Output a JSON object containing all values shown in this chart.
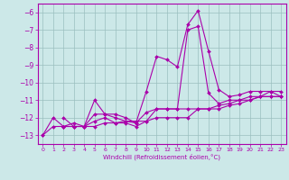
{
  "title": "",
  "xlabel": "Windchill (Refroidissement éolien,°C)",
  "ylabel": "",
  "background_color": "#cce8e8",
  "grid_color": "#9bbfbf",
  "line_color": "#aa00aa",
  "xlim": [
    -0.5,
    23.5
  ],
  "ylim": [
    -13.5,
    -5.5
  ],
  "yticks": [
    -13,
    -12,
    -11,
    -10,
    -9,
    -8,
    -7,
    -6
  ],
  "xticks": [
    0,
    1,
    2,
    3,
    4,
    5,
    6,
    7,
    8,
    9,
    10,
    11,
    12,
    13,
    14,
    15,
    16,
    17,
    18,
    19,
    20,
    21,
    22,
    23
  ],
  "series": [
    [
      null,
      null,
      -12.0,
      -12.5,
      -12.5,
      -11.0,
      -11.8,
      -12.0,
      -12.2,
      -12.3,
      -10.5,
      -8.5,
      -8.7,
      -9.1,
      -6.7,
      -5.9,
      -8.2,
      -10.4,
      -10.8,
      -10.7,
      -10.5,
      -10.5,
      -10.5,
      -10.8
    ],
    [
      null,
      null,
      -12.5,
      -12.5,
      -12.5,
      -11.8,
      -11.8,
      -11.8,
      -12.0,
      -12.3,
      -11.7,
      -11.5,
      -11.5,
      -11.5,
      -7.0,
      -6.8,
      -10.6,
      -11.2,
      -11.0,
      -11.0,
      -10.8,
      -10.8,
      -10.8,
      -10.8
    ],
    [
      -13.0,
      -12.0,
      -12.5,
      -12.3,
      -12.5,
      -12.2,
      -12.0,
      -12.3,
      -12.2,
      -12.2,
      -12.2,
      -11.5,
      -11.5,
      -11.5,
      -11.5,
      -11.5,
      -11.5,
      -11.3,
      -11.2,
      -11.0,
      -11.0,
      -10.8,
      -10.5,
      -10.5
    ],
    [
      -13.0,
      -12.5,
      -12.5,
      -12.5,
      -12.5,
      -12.5,
      -12.3,
      -12.3,
      -12.3,
      -12.5,
      -12.2,
      -12.0,
      -12.0,
      -12.0,
      -12.0,
      -11.5,
      -11.5,
      -11.5,
      -11.3,
      -11.2,
      -11.0,
      -10.8,
      -10.8,
      -10.8
    ]
  ]
}
